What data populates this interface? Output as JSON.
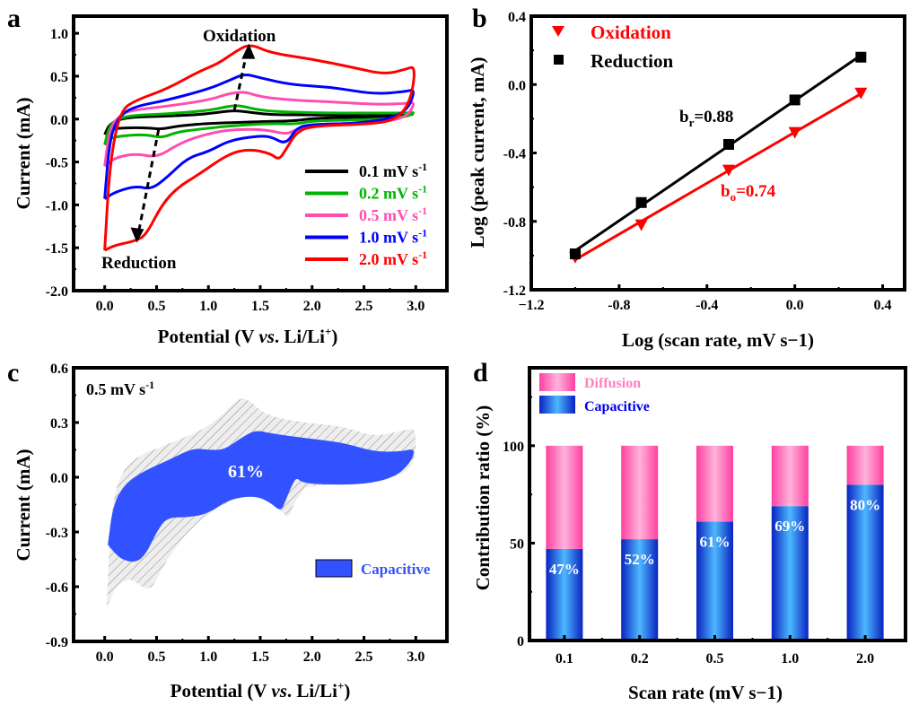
{
  "chart_data": [
    {
      "panel": "a",
      "type": "line",
      "xlabel": "Potential (V vs. Li/Li+)",
      "xlabel_parts": [
        "Potential (V ",
        "vs",
        ". Li/Li",
        "+",
        ")"
      ],
      "ylabel": "Current (mA)",
      "xlim": [
        -0.3,
        3.3
      ],
      "ylim": [
        -2.0,
        1.2
      ],
      "xticks": [
        0.0,
        0.5,
        1.0,
        1.5,
        2.0,
        2.5,
        3.0
      ],
      "xtick_labels": [
        "0.0",
        "0.5",
        "1.0",
        "1.5",
        "2.0",
        "2.5",
        "3.0"
      ],
      "yticks": [
        -2.0,
        -1.5,
        -1.0,
        -0.5,
        0.0,
        0.5,
        1.0
      ],
      "ytick_labels": [
        "-2.0",
        "-1.5",
        "-1.0",
        "-0.5",
        "0.0",
        "0.5",
        "1.0"
      ],
      "annotations": {
        "oxidation": "Oxidation",
        "reduction": "Reduction"
      },
      "legend_position": "bottom-right",
      "series": [
        {
          "name": "0.1 mV s-1",
          "rate": "0.1",
          "unit": "mV s",
          "sup": "-1",
          "color": "#000000",
          "points": [
            [
              0.0,
              -0.18
            ],
            [
              0.05,
              -0.05
            ],
            [
              0.2,
              0.02
            ],
            [
              0.5,
              0.03
            ],
            [
              0.9,
              0.05
            ],
            [
              1.1,
              0.08
            ],
            [
              1.25,
              0.1
            ],
            [
              1.4,
              0.08
            ],
            [
              1.6,
              0.05
            ],
            [
              2.0,
              0.05
            ],
            [
              2.5,
              0.04
            ],
            [
              2.9,
              0.05
            ],
            [
              3.0,
              0.06
            ],
            [
              2.8,
              0.03
            ],
            [
              2.4,
              0.02
            ],
            [
              2.0,
              0.01
            ],
            [
              1.85,
              -0.02
            ],
            [
              1.5,
              -0.03
            ],
            [
              1.0,
              -0.05
            ],
            [
              0.7,
              -0.08
            ],
            [
              0.55,
              -0.12
            ],
            [
              0.4,
              -0.1
            ],
            [
              0.2,
              -0.1
            ],
            [
              0.05,
              -0.12
            ],
            [
              0.0,
              -0.18
            ]
          ]
        },
        {
          "name": "0.2 mV s-1",
          "rate": "0.2",
          "unit": "mV s",
          "sup": "-1",
          "color": "#00b400",
          "points": [
            [
              0.0,
              -0.3
            ],
            [
              0.05,
              -0.05
            ],
            [
              0.2,
              0.04
            ],
            [
              0.6,
              0.06
            ],
            [
              1.0,
              0.1
            ],
            [
              1.2,
              0.15
            ],
            [
              1.3,
              0.16
            ],
            [
              1.5,
              0.1
            ],
            [
              1.8,
              0.08
            ],
            [
              2.2,
              0.07
            ],
            [
              2.6,
              0.07
            ],
            [
              2.9,
              0.07
            ],
            [
              3.0,
              0.08
            ],
            [
              2.9,
              0.02
            ],
            [
              2.5,
              -0.01
            ],
            [
              2.0,
              -0.02
            ],
            [
              1.85,
              -0.06
            ],
            [
              1.6,
              -0.05
            ],
            [
              1.2,
              -0.08
            ],
            [
              0.9,
              -0.12
            ],
            [
              0.7,
              -0.15
            ],
            [
              0.55,
              -0.22
            ],
            [
              0.4,
              -0.18
            ],
            [
              0.2,
              -0.19
            ],
            [
              0.05,
              -0.22
            ],
            [
              0.0,
              -0.3
            ]
          ]
        },
        {
          "name": "0.5 mV s-1",
          "rate": "0.5",
          "unit": "mV s",
          "sup": "-1",
          "color": "#ff4db0",
          "points": [
            [
              0.0,
              -0.55
            ],
            [
              0.05,
              -0.1
            ],
            [
              0.15,
              0.05
            ],
            [
              0.25,
              0.1
            ],
            [
              0.6,
              0.15
            ],
            [
              1.0,
              0.22
            ],
            [
              1.2,
              0.3
            ],
            [
              1.35,
              0.32
            ],
            [
              1.5,
              0.26
            ],
            [
              1.8,
              0.22
            ],
            [
              2.2,
              0.2
            ],
            [
              2.6,
              0.17
            ],
            [
              2.9,
              0.18
            ],
            [
              3.0,
              0.2
            ],
            [
              2.9,
              0.0
            ],
            [
              2.5,
              -0.05
            ],
            [
              2.0,
              -0.06
            ],
            [
              1.85,
              -0.12
            ],
            [
              1.75,
              -0.18
            ],
            [
              1.55,
              -0.12
            ],
            [
              1.2,
              -0.12
            ],
            [
              0.9,
              -0.2
            ],
            [
              0.7,
              -0.3
            ],
            [
              0.5,
              -0.45
            ],
            [
              0.3,
              -0.4
            ],
            [
              0.1,
              -0.45
            ],
            [
              0.0,
              -0.55
            ]
          ]
        },
        {
          "name": "1.0 mV s-1",
          "rate": "1.0",
          "unit": "mV s",
          "sup": "-1",
          "color": "#0000ff",
          "points": [
            [
              0.0,
              -0.93
            ],
            [
              0.05,
              -0.2
            ],
            [
              0.15,
              0.05
            ],
            [
              0.3,
              0.15
            ],
            [
              0.6,
              0.22
            ],
            [
              1.0,
              0.35
            ],
            [
              1.2,
              0.45
            ],
            [
              1.35,
              0.53
            ],
            [
              1.5,
              0.48
            ],
            [
              1.8,
              0.4
            ],
            [
              2.2,
              0.37
            ],
            [
              2.6,
              0.29
            ],
            [
              2.9,
              0.32
            ],
            [
              3.0,
              0.35
            ],
            [
              2.9,
              0.05
            ],
            [
              2.5,
              -0.05
            ],
            [
              2.0,
              -0.06
            ],
            [
              1.85,
              -0.1
            ],
            [
              1.75,
              -0.3
            ],
            [
              1.6,
              -0.2
            ],
            [
              1.45,
              -0.2
            ],
            [
              1.2,
              -0.25
            ],
            [
              1.0,
              -0.38
            ],
            [
              0.8,
              -0.45
            ],
            [
              0.6,
              -0.68
            ],
            [
              0.45,
              -0.82
            ],
            [
              0.3,
              -0.78
            ],
            [
              0.1,
              -0.85
            ],
            [
              0.0,
              -0.93
            ]
          ]
        },
        {
          "name": "2.0 mV s-1",
          "rate": "2.0",
          "unit": "mV s",
          "sup": "-1",
          "color": "#ff0000",
          "points": [
            [
              0.0,
              -1.53
            ],
            [
              0.05,
              -0.5
            ],
            [
              0.15,
              0.1
            ],
            [
              0.3,
              0.22
            ],
            [
              0.6,
              0.35
            ],
            [
              0.9,
              0.55
            ],
            [
              1.1,
              0.65
            ],
            [
              1.25,
              0.78
            ],
            [
              1.4,
              0.88
            ],
            [
              1.6,
              0.77
            ],
            [
              2.0,
              0.7
            ],
            [
              2.4,
              0.6
            ],
            [
              2.7,
              0.52
            ],
            [
              2.9,
              0.58
            ],
            [
              3.0,
              0.62
            ],
            [
              2.95,
              0.2
            ],
            [
              2.8,
              -0.02
            ],
            [
              2.5,
              -0.06
            ],
            [
              2.0,
              -0.08
            ],
            [
              1.85,
              -0.15
            ],
            [
              1.75,
              -0.35
            ],
            [
              1.68,
              -0.48
            ],
            [
              1.6,
              -0.4
            ],
            [
              1.4,
              -0.35
            ],
            [
              1.2,
              -0.4
            ],
            [
              0.9,
              -0.65
            ],
            [
              0.7,
              -0.8
            ],
            [
              0.55,
              -1.0
            ],
            [
              0.4,
              -1.35
            ],
            [
              0.3,
              -1.42
            ],
            [
              0.1,
              -1.47
            ],
            [
              0.0,
              -1.53
            ]
          ]
        }
      ]
    },
    {
      "panel": "b",
      "type": "scatter",
      "xlabel": "Log (scan rate, mV s−1)",
      "ylabel": "Log (peak current, mA)",
      "xlim": [
        -1.2,
        0.45
      ],
      "ylim": [
        -1.2,
        0.4
      ],
      "xticks": [
        -1.2,
        -0.8,
        -0.4,
        0.0,
        0.4
      ],
      "xtick_labels": [
        "−1.2",
        "-0.8",
        "-0.4",
        "0.0",
        "0.4"
      ],
      "yticks": [
        -1.2,
        -0.8,
        -0.4,
        0.0,
        0.4
      ],
      "ytick_labels": [
        "-1.2",
        "-0.8",
        "-0.4",
        "0.0",
        "0.4"
      ],
      "legend_position": "top-left",
      "series": [
        {
          "name": "Oxidation",
          "marker": "triangle-down",
          "color": "#ff0000",
          "x": [
            -1.0,
            -0.699,
            -0.301,
            0.0,
            0.301
          ],
          "y": [
            -1.01,
            -0.82,
            -0.5,
            -0.28,
            -0.05
          ],
          "fit_label": "b",
          "fit_sub": "o",
          "fit_value": "=0.74"
        },
        {
          "name": "Reduction",
          "marker": "square",
          "color": "#000000",
          "x": [
            -1.0,
            -0.699,
            -0.301,
            0.0,
            0.301
          ],
          "y": [
            -0.99,
            -0.69,
            -0.35,
            -0.09,
            0.16
          ],
          "fit_label": "b",
          "fit_sub": "r",
          "fit_value": "=0.88"
        }
      ]
    },
    {
      "panel": "c",
      "type": "area",
      "title": "0.5 mV s-1",
      "title_parts": [
        "0.5 mV s",
        "-1"
      ],
      "xlabel": "Potential (V vs. Li/Li+)",
      "xlabel_parts": [
        "Potential (V ",
        "vs",
        ". Li/Li",
        "+",
        ")"
      ],
      "ylabel": "Current (mA)",
      "xlim": [
        -0.3,
        3.3
      ],
      "ylim": [
        -0.9,
        0.6
      ],
      "xticks": [
        0.0,
        0.5,
        1.0,
        1.5,
        2.0,
        2.5,
        3.0
      ],
      "xtick_labels": [
        "0.0",
        "0.5",
        "1.0",
        "1.5",
        "2.0",
        "2.5",
        "3.0"
      ],
      "yticks": [
        -0.9,
        -0.6,
        -0.3,
        0.0,
        0.3,
        0.6
      ],
      "ytick_labels": [
        "-0.9",
        "-0.6",
        "-0.3",
        "0.0",
        "0.3",
        "0.6"
      ],
      "capacitive_percent": "61%",
      "legend": [
        {
          "name": "Capacitive",
          "color": "#3352ff"
        }
      ],
      "legend_position": "right",
      "total_outline": [
        [
          0.02,
          -0.72
        ],
        [
          0.05,
          -0.3
        ],
        [
          0.1,
          -0.05
        ],
        [
          0.25,
          0.1
        ],
        [
          0.6,
          0.18
        ],
        [
          0.95,
          0.26
        ],
        [
          1.15,
          0.35
        ],
        [
          1.3,
          0.44
        ],
        [
          1.4,
          0.42
        ],
        [
          1.55,
          0.34
        ],
        [
          1.9,
          0.3
        ],
        [
          2.3,
          0.28
        ],
        [
          2.6,
          0.22
        ],
        [
          2.9,
          0.26
        ],
        [
          3.0,
          0.27
        ],
        [
          3.0,
          0.1
        ],
        [
          2.9,
          0.02
        ],
        [
          2.6,
          -0.02
        ],
        [
          2.2,
          -0.04
        ],
        [
          1.95,
          -0.05
        ],
        [
          1.9,
          -0.08
        ],
        [
          1.82,
          -0.15
        ],
        [
          1.78,
          -0.22
        ],
        [
          1.72,
          -0.2
        ],
        [
          1.6,
          -0.12
        ],
        [
          1.3,
          -0.1
        ],
        [
          1.0,
          -0.2
        ],
        [
          0.8,
          -0.3
        ],
        [
          0.6,
          -0.45
        ],
        [
          0.45,
          -0.62
        ],
        [
          0.35,
          -0.6
        ],
        [
          0.25,
          -0.55
        ],
        [
          0.1,
          -0.6
        ],
        [
          0.02,
          -0.72
        ]
      ],
      "capacitive_outline": [
        [
          0.03,
          -0.37
        ],
        [
          0.08,
          -0.15
        ],
        [
          0.2,
          -0.03
        ],
        [
          0.4,
          0.04
        ],
        [
          0.6,
          0.09
        ],
        [
          0.85,
          0.16
        ],
        [
          1.0,
          0.15
        ],
        [
          1.15,
          0.15
        ],
        [
          1.3,
          0.21
        ],
        [
          1.45,
          0.26
        ],
        [
          1.6,
          0.24
        ],
        [
          2.0,
          0.21
        ],
        [
          2.3,
          0.19
        ],
        [
          2.6,
          0.14
        ],
        [
          2.85,
          0.14
        ],
        [
          3.0,
          0.16
        ],
        [
          2.95,
          0.08
        ],
        [
          2.8,
          0.0
        ],
        [
          2.5,
          -0.04
        ],
        [
          2.1,
          -0.04
        ],
        [
          1.9,
          -0.03
        ],
        [
          1.85,
          0.0
        ],
        [
          1.8,
          -0.05
        ],
        [
          1.75,
          -0.12
        ],
        [
          1.7,
          -0.19
        ],
        [
          1.6,
          -0.14
        ],
        [
          1.45,
          -0.1
        ],
        [
          1.2,
          -0.12
        ],
        [
          1.0,
          -0.2
        ],
        [
          0.8,
          -0.22
        ],
        [
          0.6,
          -0.22
        ],
        [
          0.5,
          -0.3
        ],
        [
          0.4,
          -0.42
        ],
        [
          0.3,
          -0.47
        ],
        [
          0.15,
          -0.45
        ],
        [
          0.03,
          -0.37
        ]
      ]
    },
    {
      "panel": "d",
      "type": "bar",
      "stacked": true,
      "xlabel": "Scan rate (mV s−1)",
      "ylabel": "Contribution ratio (%)",
      "categories": [
        "0.1",
        "0.2",
        "0.5",
        "1.0",
        "2.0"
      ],
      "ylim": [
        0,
        140
      ],
      "yticks": [
        0,
        50,
        100
      ],
      "ytick_labels": [
        "0",
        "50",
        "100"
      ],
      "legend_position": "top-left",
      "series": [
        {
          "name": "Capacitive",
          "values": [
            47,
            52,
            61,
            69,
            80
          ],
          "labels": [
            "47%",
            "52%",
            "61%",
            "69%",
            "80%"
          ],
          "color": "#4db8ff",
          "edge_color": "#0a22c0",
          "text_color": "#0000e6"
        },
        {
          "name": "Diffusion",
          "values": [
            53,
            48,
            39,
            31,
            20
          ],
          "color": "#ffaad6",
          "edge_color": "#ff40a0",
          "text_color": "#ff80c0"
        }
      ]
    }
  ]
}
